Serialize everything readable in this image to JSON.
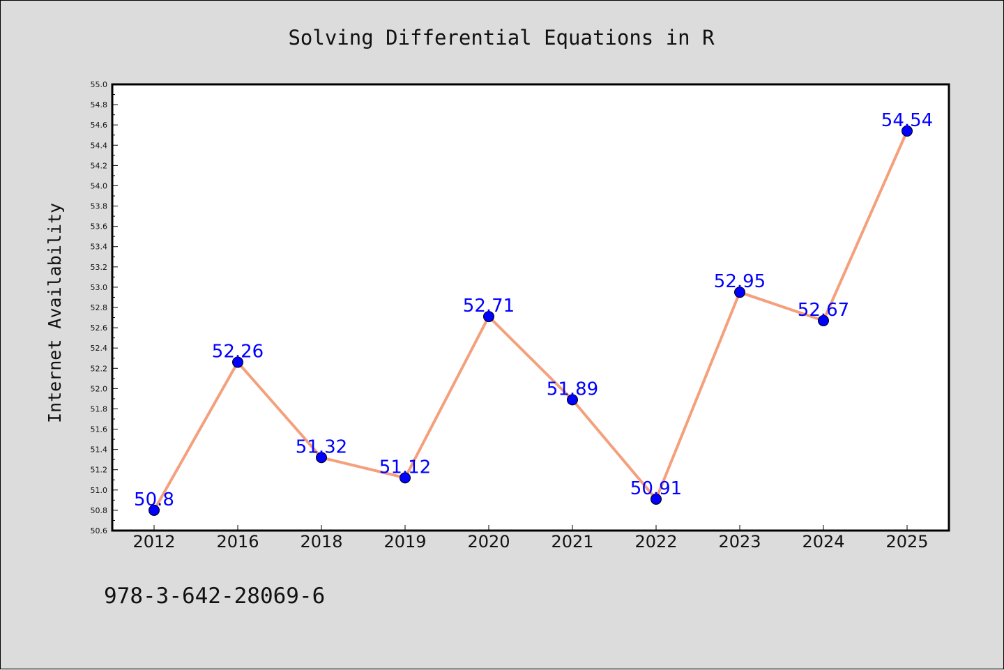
{
  "chart_data": {
    "type": "line",
    "title": "Solving Differential Equations in R",
    "xlabel": "",
    "ylabel": "Internet Availability",
    "categories": [
      "2012",
      "2016",
      "2018",
      "2019",
      "2020",
      "2021",
      "2022",
      "2023",
      "2024",
      "2025"
    ],
    "values": [
      50.8,
      52.26,
      51.32,
      51.12,
      52.71,
      51.89,
      50.91,
      52.95,
      52.67,
      54.54
    ],
    "data_labels": [
      "50.8",
      "52.26",
      "51.32",
      "51.12",
      "52.71",
      "51.89",
      "50.91",
      "52.95",
      "52.67",
      "54.54"
    ],
    "ylim": [
      50.6,
      55.0
    ],
    "yticks": [
      "50.6",
      "50.8",
      "51.0",
      "51.2",
      "51.4",
      "51.6",
      "51.8",
      "52.0",
      "52.2",
      "52.4",
      "52.6",
      "52.8",
      "53.0",
      "53.2",
      "53.4",
      "53.6",
      "53.8",
      "54.0",
      "54.2",
      "54.4",
      "54.6",
      "54.8",
      "55.0"
    ],
    "grid": false,
    "line_color": "#f4a07c",
    "marker_color": "#0000ff",
    "label_color": "#0000ff",
    "plot_background": "#ffffff",
    "figure_background": "#dcdcdc"
  },
  "footer": {
    "isbn": "978-3-642-28069-6"
  }
}
